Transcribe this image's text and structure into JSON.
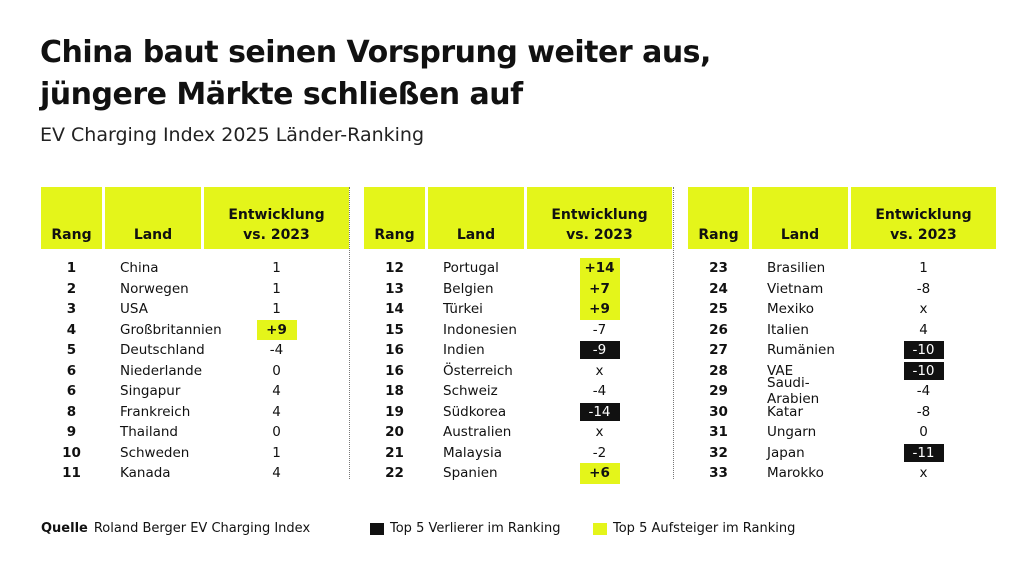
{
  "title_line1": "China baut seinen Vorsprung weiter aus,",
  "title_line2": "jüngere Märkte schließen auf",
  "subtitle": "EV Charging Index 2025 Länder-Ranking",
  "headers": {
    "rank": "Rang",
    "country": "Land",
    "change_line1": "Entwicklung",
    "change_line2": "vs. 2023"
  },
  "colors": {
    "highlight_up": "#e4f51a",
    "highlight_down": "#111111"
  },
  "tables": [
    {
      "rows": [
        {
          "rank": "1",
          "country": "China",
          "change": "1",
          "mark": ""
        },
        {
          "rank": "2",
          "country": "Norwegen",
          "change": "1",
          "mark": ""
        },
        {
          "rank": "3",
          "country": "USA",
          "change": "1",
          "mark": ""
        },
        {
          "rank": "4",
          "country": "Großbritannien",
          "change": "+9",
          "mark": "up"
        },
        {
          "rank": "5",
          "country": "Deutschland",
          "change": "-4",
          "mark": ""
        },
        {
          "rank": "6",
          "country": "Niederlande",
          "change": "0",
          "mark": ""
        },
        {
          "rank": "6",
          "country": "Singapur",
          "change": "4",
          "mark": ""
        },
        {
          "rank": "8",
          "country": "Frankreich",
          "change": "4",
          "mark": ""
        },
        {
          "rank": "9",
          "country": "Thailand",
          "change": "0",
          "mark": ""
        },
        {
          "rank": "10",
          "country": "Schweden",
          "change": "1",
          "mark": ""
        },
        {
          "rank": "11",
          "country": "Kanada",
          "change": "4",
          "mark": ""
        }
      ]
    },
    {
      "rows": [
        {
          "rank": "12",
          "country": "Portugal",
          "change": "+14",
          "mark": "up"
        },
        {
          "rank": "13",
          "country": "Belgien",
          "change": "+7",
          "mark": "up"
        },
        {
          "rank": "14",
          "country": "Türkei",
          "change": "+9",
          "mark": "up"
        },
        {
          "rank": "15",
          "country": "Indonesien",
          "change": "-7",
          "mark": ""
        },
        {
          "rank": "16",
          "country": "Indien",
          "change": "-9",
          "mark": "down"
        },
        {
          "rank": "16",
          "country": "Österreich",
          "change": "x",
          "mark": ""
        },
        {
          "rank": "18",
          "country": "Schweiz",
          "change": "-4",
          "mark": ""
        },
        {
          "rank": "19",
          "country": "Südkorea",
          "change": "-14",
          "mark": "down"
        },
        {
          "rank": "20",
          "country": "Australien",
          "change": "x",
          "mark": ""
        },
        {
          "rank": "21",
          "country": "Malaysia",
          "change": "-2",
          "mark": ""
        },
        {
          "rank": "22",
          "country": "Spanien",
          "change": "+6",
          "mark": "up"
        }
      ]
    },
    {
      "rows": [
        {
          "rank": "23",
          "country": "Brasilien",
          "change": "1",
          "mark": ""
        },
        {
          "rank": "24",
          "country": "Vietnam",
          "change": "-8",
          "mark": ""
        },
        {
          "rank": "25",
          "country": "Mexiko",
          "change": "x",
          "mark": ""
        },
        {
          "rank": "26",
          "country": "Italien",
          "change": "4",
          "mark": ""
        },
        {
          "rank": "27",
          "country": "Rumänien",
          "change": "-10",
          "mark": "down"
        },
        {
          "rank": "28",
          "country": "VAE",
          "change": "-10",
          "mark": "down"
        },
        {
          "rank": "29",
          "country": "Saudi-Arabien",
          "change": "-4",
          "mark": ""
        },
        {
          "rank": "30",
          "country": "Katar",
          "change": "-8",
          "mark": ""
        },
        {
          "rank": "31",
          "country": "Ungarn",
          "change": "0",
          "mark": ""
        },
        {
          "rank": "32",
          "country": "Japan",
          "change": "-11",
          "mark": "down"
        },
        {
          "rank": "33",
          "country": "Marokko",
          "change": "x",
          "mark": ""
        }
      ]
    }
  ],
  "footer": {
    "source_label": "Quelle",
    "source_text": "Roland Berger EV Charging Index",
    "legend_down": "Top 5 Verlierer im Ranking",
    "legend_up": "Top 5 Aufsteiger im Ranking"
  }
}
